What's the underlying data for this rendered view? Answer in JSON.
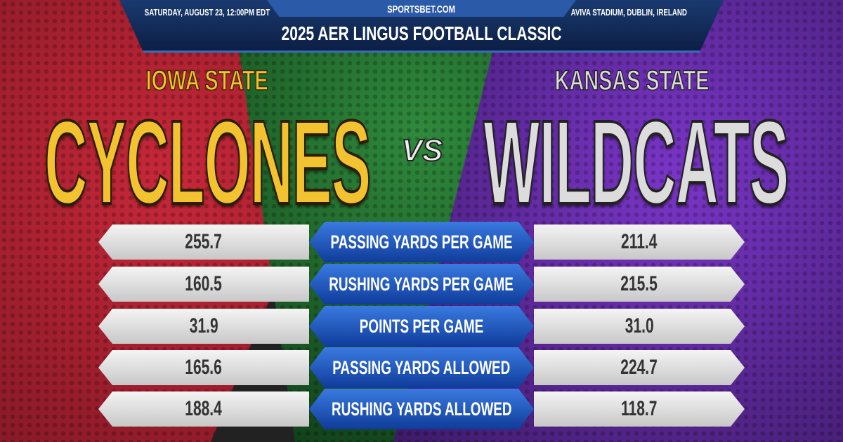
{
  "header": {
    "date": "SATURDAY, AUGUST 23, 12:00PM EDT",
    "site": "SPORTSBET.COM",
    "venue": "AVIVA STADIUM, DUBLIN, IRELAND",
    "title": "2025 AER LINGUS FOOTBALL CLASSIC"
  },
  "teams": {
    "home": {
      "school": "IOWA STATE",
      "mascot": "CYCLONES",
      "color": "#f2c230"
    },
    "away": {
      "school": "KANSAS STATE",
      "mascot": "WILDCATS",
      "color": "#dcdcdc"
    },
    "vs": "VS"
  },
  "stats": [
    {
      "label": "PASSING YARDS PER GAME",
      "home": "255.7",
      "away": "211.4"
    },
    {
      "label": "RUSHING YARDS PER GAME",
      "home": "160.5",
      "away": "215.5"
    },
    {
      "label": "POINTS PER GAME",
      "home": "31.9",
      "away": "31.0"
    },
    {
      "label": "PASSING YARDS ALLOWED",
      "home": "165.6",
      "away": "224.7"
    },
    {
      "label": "RUSHING YARDS ALLOWED",
      "home": "188.4",
      "away": "118.7"
    }
  ]
}
